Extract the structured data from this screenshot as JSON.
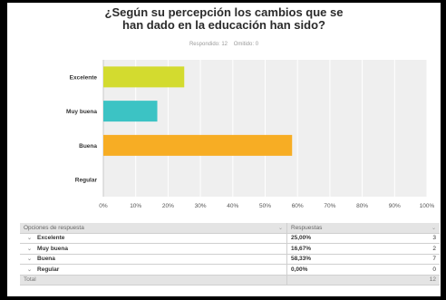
{
  "title_line1": "¿Según su percepción los cambios que se",
  "title_line2": "han dado en la educación han sido?",
  "summary": {
    "answered_label": "Respondido: 12",
    "skipped_label": "Omitido: 0"
  },
  "chart_data": {
    "type": "bar",
    "orientation": "horizontal",
    "categories": [
      "Excelente",
      "Muy buena",
      "Buena",
      "Regular"
    ],
    "values": [
      25.0,
      16.67,
      58.33,
      0.0
    ],
    "bar_colors": [
      "#d3db2f",
      "#3cc3c4",
      "#f7ad24",
      "#f7ad24"
    ],
    "xlim": [
      0,
      100
    ],
    "x_ticks": [
      "0%",
      "10%",
      "20%",
      "30%",
      "40%",
      "50%",
      "60%",
      "70%",
      "80%",
      "90%",
      "100%"
    ],
    "grid": true,
    "plot_background": "#efefef"
  },
  "table": {
    "headers": [
      "Opciones de respuesta",
      "Respuestas"
    ],
    "rows": [
      {
        "option": "Excelente",
        "percent": "25,00%",
        "count": "3"
      },
      {
        "option": "Muy buena",
        "percent": "16,67%",
        "count": "2"
      },
      {
        "option": "Buena",
        "percent": "58,33%",
        "count": "7"
      },
      {
        "option": "Regular",
        "percent": "0,00%",
        "count": "0"
      }
    ],
    "total_label": "Total",
    "total_count": "12",
    "expand_icon": "chevron-down-icon"
  }
}
